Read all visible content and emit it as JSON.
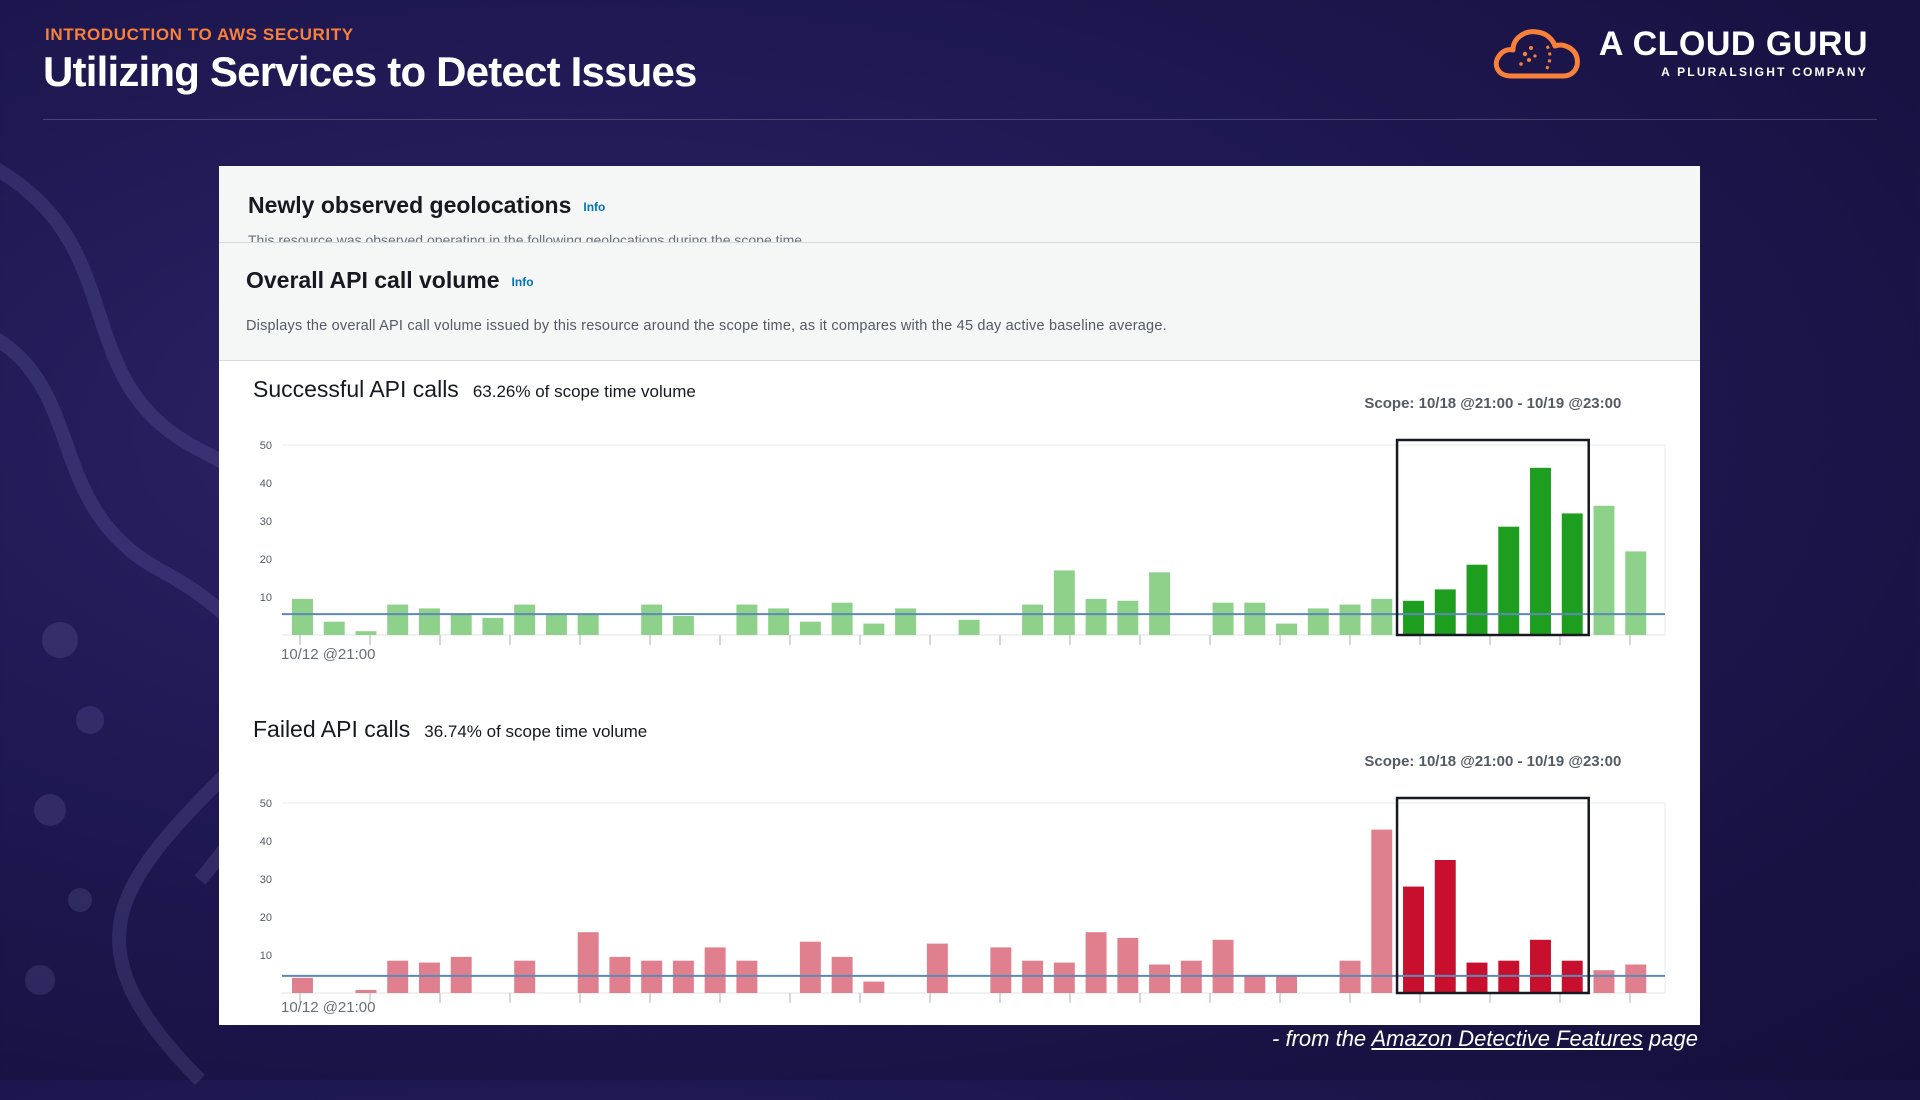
{
  "slide": {
    "kicker": "INTRODUCTION TO AWS SECURITY",
    "title": "Utilizing Services to Detect Issues"
  },
  "logo": {
    "name": "A CLOUD GURU",
    "tagline": "A PLURALSIGHT COMPANY",
    "icon": "cloud-logo-icon",
    "color": "#f7813a"
  },
  "panel": {
    "geo": {
      "title": "Newly observed geolocations",
      "info": "Info",
      "description": "This resource was observed operating in the following geolocations during the scope time."
    },
    "api": {
      "title": "Overall API call volume",
      "info": "Info",
      "description": "Displays the overall API call volume issued by this resource around the scope time, as it compares with the 45 day active baseline average."
    }
  },
  "caption": {
    "prefix": "- from the ",
    "link": "Amazon Detective Features",
    "suffix": " page"
  },
  "chart_data": [
    {
      "type": "bar",
      "title": "Successful API calls",
      "subtitle": "63.26% of scope time volume",
      "scope_label": "Scope: 10/18 @21:00 - 10/19 @23:00",
      "x_start_label": "10/12 @21:00",
      "yticks": [
        10,
        20,
        30,
        40,
        50
      ],
      "ylim": [
        0,
        50
      ],
      "baseline": 5.5,
      "scope_range": [
        35,
        40
      ],
      "color": "#8ed18a",
      "scope_color": "#1e9e1e",
      "values": [
        9.5,
        3.5,
        1,
        8,
        7,
        5.5,
        4.5,
        8,
        5.5,
        5.5,
        0,
        8,
        5,
        0,
        8,
        7,
        3.5,
        8.5,
        3,
        7,
        0,
        4,
        0,
        8,
        17,
        9.5,
        9,
        16.5,
        0,
        8.5,
        8.5,
        3,
        7,
        8,
        9.5,
        9,
        12,
        18.5,
        28.5,
        44,
        32,
        34,
        22
      ]
    },
    {
      "type": "bar",
      "title": "Failed API calls",
      "subtitle": "36.74% of scope time volume",
      "scope_label": "Scope: 10/18 @21:00 - 10/19 @23:00",
      "x_start_label": "10/12 @21:00",
      "yticks": [
        10,
        20,
        30,
        40,
        50
      ],
      "ylim": [
        0,
        50
      ],
      "baseline": 4.5,
      "scope_range": [
        35,
        40
      ],
      "color": "#e0808e",
      "scope_color": "#c8102e",
      "values": [
        4,
        0,
        0.8,
        8.5,
        8,
        9.5,
        0,
        8.5,
        0,
        16,
        9.5,
        8.5,
        8.5,
        12,
        8.5,
        0,
        13.5,
        9.5,
        3,
        0,
        13,
        0,
        12,
        8.5,
        8,
        16,
        14.5,
        7.5,
        8.5,
        14,
        4.5,
        4.5,
        0,
        8.5,
        43,
        28,
        35,
        8,
        8.5,
        14,
        8.5,
        6,
        7.5
      ]
    }
  ]
}
